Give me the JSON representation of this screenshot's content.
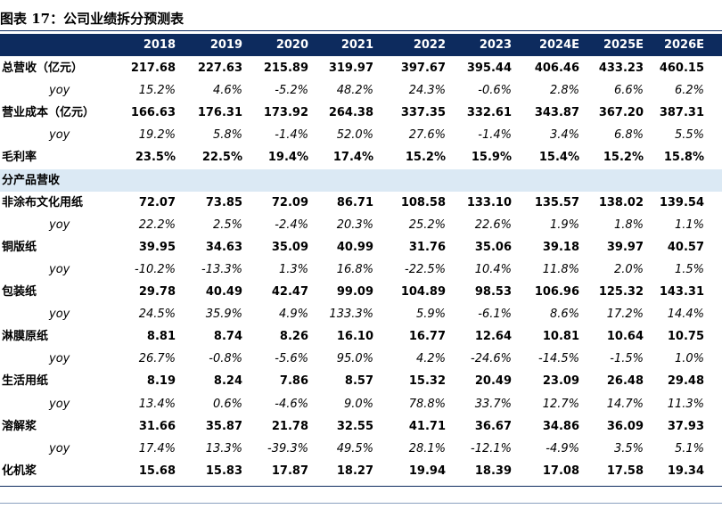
{
  "title": "图表 17：公司业绩拆分预测表",
  "table": {
    "header": [
      "2018",
      "2019",
      "2020",
      "2021",
      "2022",
      "2023",
      "2024E",
      "2025E",
      "2026E"
    ],
    "summary": [
      {
        "label": "总营收（亿元）",
        "values": [
          "217.68",
          "227.63",
          "215.89",
          "319.97",
          "397.67",
          "395.44",
          "406.46",
          "433.23",
          "460.15"
        ],
        "yoy": {
          "label": "yoy",
          "values": [
            "15.2%",
            "4.6%",
            "-5.2%",
            "48.2%",
            "24.3%",
            "-0.6%",
            "2.8%",
            "6.6%",
            "6.2%"
          ]
        }
      },
      {
        "label": "营业成本（亿元）",
        "values": [
          "166.63",
          "176.31",
          "173.92",
          "264.38",
          "337.35",
          "332.61",
          "343.87",
          "367.20",
          "387.31"
        ],
        "yoy": {
          "label": "yoy",
          "values": [
            "19.2%",
            "5.8%",
            "-1.4%",
            "52.0%",
            "27.6%",
            "-1.4%",
            "3.4%",
            "6.8%",
            "5.5%"
          ]
        }
      },
      {
        "label": "毛利率",
        "values": [
          "23.5%",
          "22.5%",
          "19.4%",
          "17.4%",
          "15.2%",
          "15.9%",
          "15.4%",
          "15.2%",
          "15.8%"
        ]
      }
    ],
    "section": {
      "title": "分产品营收",
      "rows": [
        {
          "label": "非涂布文化用纸",
          "values": [
            "72.07",
            "73.85",
            "72.09",
            "86.71",
            "108.58",
            "133.10",
            "135.57",
            "138.02",
            "139.54"
          ],
          "yoy": {
            "label": "yoy",
            "values": [
              "22.2%",
              "2.5%",
              "-2.4%",
              "20.3%",
              "25.2%",
              "22.6%",
              "1.9%",
              "1.8%",
              "1.1%"
            ]
          }
        },
        {
          "label": "铜版纸",
          "values": [
            "39.95",
            "34.63",
            "35.09",
            "40.99",
            "31.76",
            "35.06",
            "39.18",
            "39.97",
            "40.57"
          ],
          "yoy": {
            "label": "yoy",
            "values": [
              "-10.2%",
              "-13.3%",
              "1.3%",
              "16.8%",
              "-22.5%",
              "10.4%",
              "11.8%",
              "2.0%",
              "1.5%"
            ]
          }
        },
        {
          "label": "包装纸",
          "values": [
            "29.78",
            "40.49",
            "42.47",
            "99.09",
            "104.89",
            "98.53",
            "106.96",
            "125.32",
            "143.31"
          ],
          "yoy": {
            "label": "yoy",
            "values": [
              "24.5%",
              "35.9%",
              "4.9%",
              "133.3%",
              "5.9%",
              "-6.1%",
              "8.6%",
              "17.2%",
              "14.4%"
            ]
          }
        },
        {
          "label": "淋膜原纸",
          "values": [
            "8.81",
            "8.74",
            "8.26",
            "16.10",
            "16.77",
            "12.64",
            "10.81",
            "10.64",
            "10.75"
          ],
          "yoy": {
            "label": "yoy",
            "values": [
              "26.7%",
              "-0.8%",
              "-5.6%",
              "95.0%",
              "4.2%",
              "-24.6%",
              "-14.5%",
              "-1.5%",
              "1.0%"
            ]
          }
        },
        {
          "label": "生活用纸",
          "values": [
            "8.19",
            "8.24",
            "7.86",
            "8.57",
            "15.32",
            "20.49",
            "23.09",
            "26.48",
            "29.48"
          ],
          "yoy": {
            "label": "yoy",
            "values": [
              "13.4%",
              "0.6%",
              "-4.6%",
              "9.0%",
              "78.8%",
              "33.7%",
              "12.7%",
              "14.7%",
              "11.3%"
            ]
          }
        },
        {
          "label": "溶解浆",
          "values": [
            "31.66",
            "35.87",
            "21.78",
            "32.55",
            "41.71",
            "36.67",
            "34.86",
            "36.09",
            "37.93"
          ],
          "yoy": {
            "label": "yoy",
            "values": [
              "17.4%",
              "13.3%",
              "-39.3%",
              "49.5%",
              "28.1%",
              "-12.1%",
              "-4.9%",
              "3.5%",
              "5.1%"
            ]
          }
        },
        {
          "label": "化机浆",
          "values": [
            "15.68",
            "15.83",
            "17.87",
            "18.27",
            "19.94",
            "18.39",
            "17.08",
            "17.58",
            "19.34"
          ]
        }
      ]
    }
  }
}
